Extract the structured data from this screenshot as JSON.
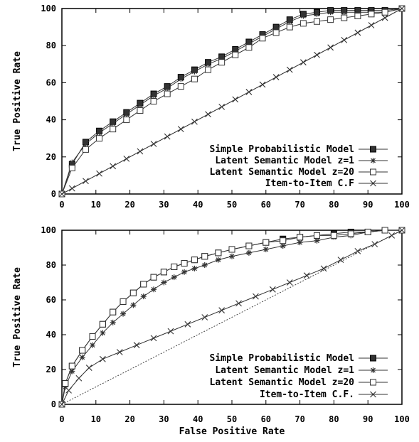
{
  "chart_data": [
    {
      "type": "line",
      "title": "",
      "xlabel": "",
      "ylabel": "True Positive Rate",
      "xlim": [
        0,
        100
      ],
      "ylim": [
        0,
        100
      ],
      "xticks": [
        "0",
        "10",
        "20",
        "30",
        "40",
        "50",
        "60",
        "70",
        "80",
        "90",
        "100"
      ],
      "yticks": [
        "0",
        "20",
        "40",
        "60",
        "80",
        "100"
      ],
      "grid": false,
      "legend_position": "bottom-right",
      "reference_line": [
        [
          0,
          0
        ],
        [
          100,
          100
        ]
      ],
      "series": [
        {
          "name": "Simple Probabilistic Model",
          "marker": "filled-square",
          "x": [
            0,
            3,
            7,
            11,
            15,
            19,
            23,
            27,
            31,
            35,
            39,
            43,
            47,
            51,
            55,
            59,
            63,
            67,
            71,
            75,
            79,
            83,
            87,
            91,
            95,
            100
          ],
          "y": [
            0,
            16,
            28,
            34,
            39,
            44,
            49,
            54,
            58,
            63,
            67,
            71,
            74,
            78,
            82,
            86,
            90,
            94,
            97,
            98,
            99,
            99,
            99,
            99,
            99,
            100
          ]
        },
        {
          "name": "Latent Semantic Model z=1",
          "marker": "asterisk",
          "x": [
            0,
            3,
            7,
            11,
            15,
            19,
            23,
            27,
            31,
            35,
            39,
            43,
            47,
            51,
            55,
            59,
            63,
            67,
            71,
            75,
            79,
            83,
            87,
            91,
            95,
            100
          ],
          "y": [
            0,
            17,
            27,
            33,
            38,
            43,
            48,
            53,
            57,
            62,
            66,
            70,
            73,
            77,
            81,
            85,
            89,
            93,
            96,
            97,
            98,
            98,
            98,
            98,
            98,
            100
          ]
        },
        {
          "name": "Latent Semantic Model z=20",
          "marker": "hollow-square",
          "x": [
            0,
            3,
            7,
            11,
            15,
            19,
            23,
            27,
            31,
            35,
            39,
            43,
            47,
            51,
            55,
            59,
            63,
            67,
            71,
            75,
            79,
            83,
            87,
            91,
            95,
            100
          ],
          "y": [
            0,
            14,
            24,
            30,
            35,
            40,
            45,
            50,
            54,
            58,
            62,
            67,
            71,
            75,
            79,
            84,
            87,
            90,
            92,
            93,
            94,
            95,
            96,
            97,
            98,
            100
          ]
        },
        {
          "name": "Item-to-Item C.F",
          "marker": "cross",
          "x": [
            0,
            3,
            7,
            11,
            15,
            19,
            23,
            27,
            31,
            35,
            39,
            43,
            47,
            51,
            55,
            59,
            63,
            67,
            71,
            75,
            79,
            83,
            87,
            91,
            95,
            100
          ],
          "y": [
            0,
            3,
            7,
            11,
            15,
            19,
            23,
            27,
            31,
            35,
            39,
            43,
            47,
            51,
            55,
            59,
            63,
            67,
            71,
            75,
            79,
            83,
            87,
            91,
            95,
            100
          ]
        }
      ]
    },
    {
      "type": "line",
      "title": "",
      "xlabel": "False Positive Rate",
      "ylabel": "True Positive Rate",
      "xlim": [
        0,
        100
      ],
      "ylim": [
        0,
        100
      ],
      "xticks": [
        "0",
        "10",
        "20",
        "30",
        "40",
        "50",
        "60",
        "70",
        "80",
        "90",
        "100"
      ],
      "yticks": [
        "0",
        "20",
        "40",
        "60",
        "80",
        "100"
      ],
      "grid": false,
      "legend_position": "bottom-right",
      "reference_line": [
        [
          0,
          0
        ],
        [
          100,
          100
        ]
      ],
      "series": [
        {
          "name": "Simple Probabilistic Model",
          "marker": "filled-square",
          "x": [
            0,
            1,
            3,
            6,
            9,
            12,
            15,
            18,
            21,
            24,
            27,
            30,
            33,
            36,
            39,
            42,
            46,
            50,
            55,
            60,
            65,
            70,
            75,
            80,
            85,
            90,
            95,
            100
          ],
          "y": [
            0,
            12,
            22,
            31,
            39,
            46,
            53,
            59,
            64,
            69,
            73,
            76,
            79,
            81,
            83,
            85,
            87,
            89,
            91,
            93,
            95,
            96,
            97,
            98,
            99,
            99,
            100,
            100
          ]
        },
        {
          "name": "Latent Semantic Model z=1",
          "marker": "asterisk",
          "x": [
            0,
            1,
            3,
            6,
            9,
            12,
            15,
            18,
            21,
            24,
            27,
            30,
            33,
            36,
            39,
            42,
            46,
            50,
            55,
            60,
            65,
            70,
            75,
            80,
            85,
            90,
            95,
            100
          ],
          "y": [
            0,
            10,
            19,
            27,
            34,
            41,
            47,
            52,
            57,
            62,
            66,
            70,
            73,
            76,
            78,
            80,
            83,
            85,
            87,
            89,
            91,
            93,
            94,
            96,
            97,
            99,
            100,
            100
          ]
        },
        {
          "name": "Latent Semantic Model z=20",
          "marker": "hollow-square",
          "x": [
            0,
            1,
            3,
            6,
            9,
            12,
            15,
            18,
            21,
            24,
            27,
            30,
            33,
            36,
            39,
            42,
            46,
            50,
            55,
            60,
            65,
            70,
            75,
            80,
            85,
            90,
            95,
            100
          ],
          "y": [
            0,
            12,
            22,
            31,
            39,
            46,
            53,
            59,
            64,
            69,
            73,
            76,
            79,
            81,
            83,
            85,
            87,
            89,
            91,
            93,
            94,
            96,
            97,
            97,
            98,
            99,
            100,
            100
          ]
        },
        {
          "name": "Item-to-Item C.F.",
          "marker": "cross",
          "x": [
            0,
            2,
            5,
            8,
            12,
            17,
            22,
            27,
            32,
            37,
            42,
            47,
            52,
            57,
            62,
            67,
            72,
            77,
            82,
            87,
            92,
            97,
            100
          ],
          "y": [
            0,
            8,
            15,
            21,
            26,
            30,
            34,
            38,
            42,
            46,
            50,
            54,
            58,
            62,
            66,
            70,
            74,
            78,
            83,
            88,
            92,
            97,
            100
          ]
        }
      ]
    }
  ]
}
